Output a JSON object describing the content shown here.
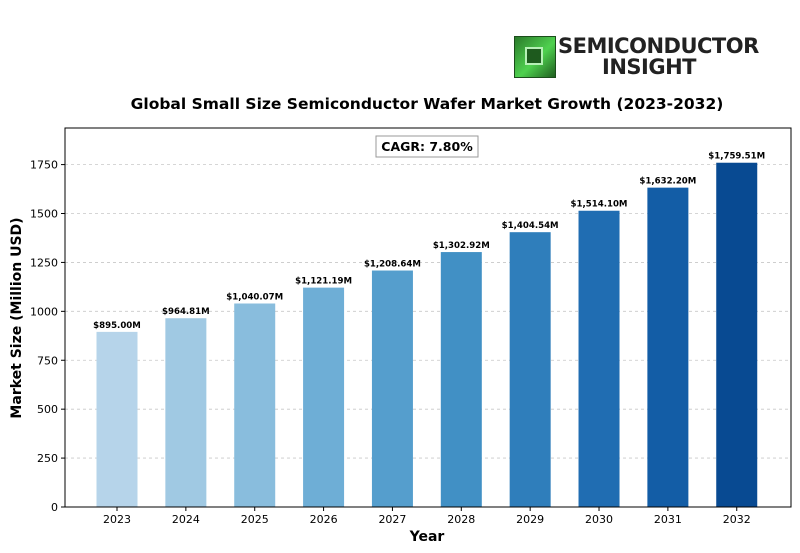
{
  "logo": {
    "icon": "chip-icon",
    "line1": "SEMICONDUCTOR",
    "line2": "INSIGHT"
  },
  "chart_data": {
    "type": "bar",
    "title": "Global Small Size Semiconductor Wafer Market Growth (2023-2032)",
    "xlabel": "Year",
    "ylabel": "Market Size (Million USD)",
    "annotation": "CAGR: 7.80%",
    "categories": [
      "2023",
      "2024",
      "2025",
      "2026",
      "2027",
      "2028",
      "2029",
      "2030",
      "2031",
      "2032"
    ],
    "values": [
      895.0,
      964.81,
      1040.07,
      1121.19,
      1208.64,
      1302.92,
      1404.54,
      1514.1,
      1632.2,
      1759.51
    ],
    "data_labels": [
      "$895.00M",
      "$964.81M",
      "$1,040.07M",
      "$1,121.19M",
      "$1,208.64M",
      "$1,302.92M",
      "$1,404.54M",
      "$1,514.10M",
      "$1,632.20M",
      "$1,759.51M"
    ],
    "yticks": [
      0,
      250,
      500,
      750,
      1000,
      1250,
      1500,
      1750
    ],
    "ylim": [
      0,
      1937
    ],
    "grid": "horizontal dashed",
    "bar_colors": [
      "#b6d4ea",
      "#a0c9e3",
      "#89bddd",
      "#6eaed6",
      "#559ecd",
      "#4190c5",
      "#2f7ebb",
      "#206db2",
      "#135da6",
      "#084a92"
    ]
  }
}
